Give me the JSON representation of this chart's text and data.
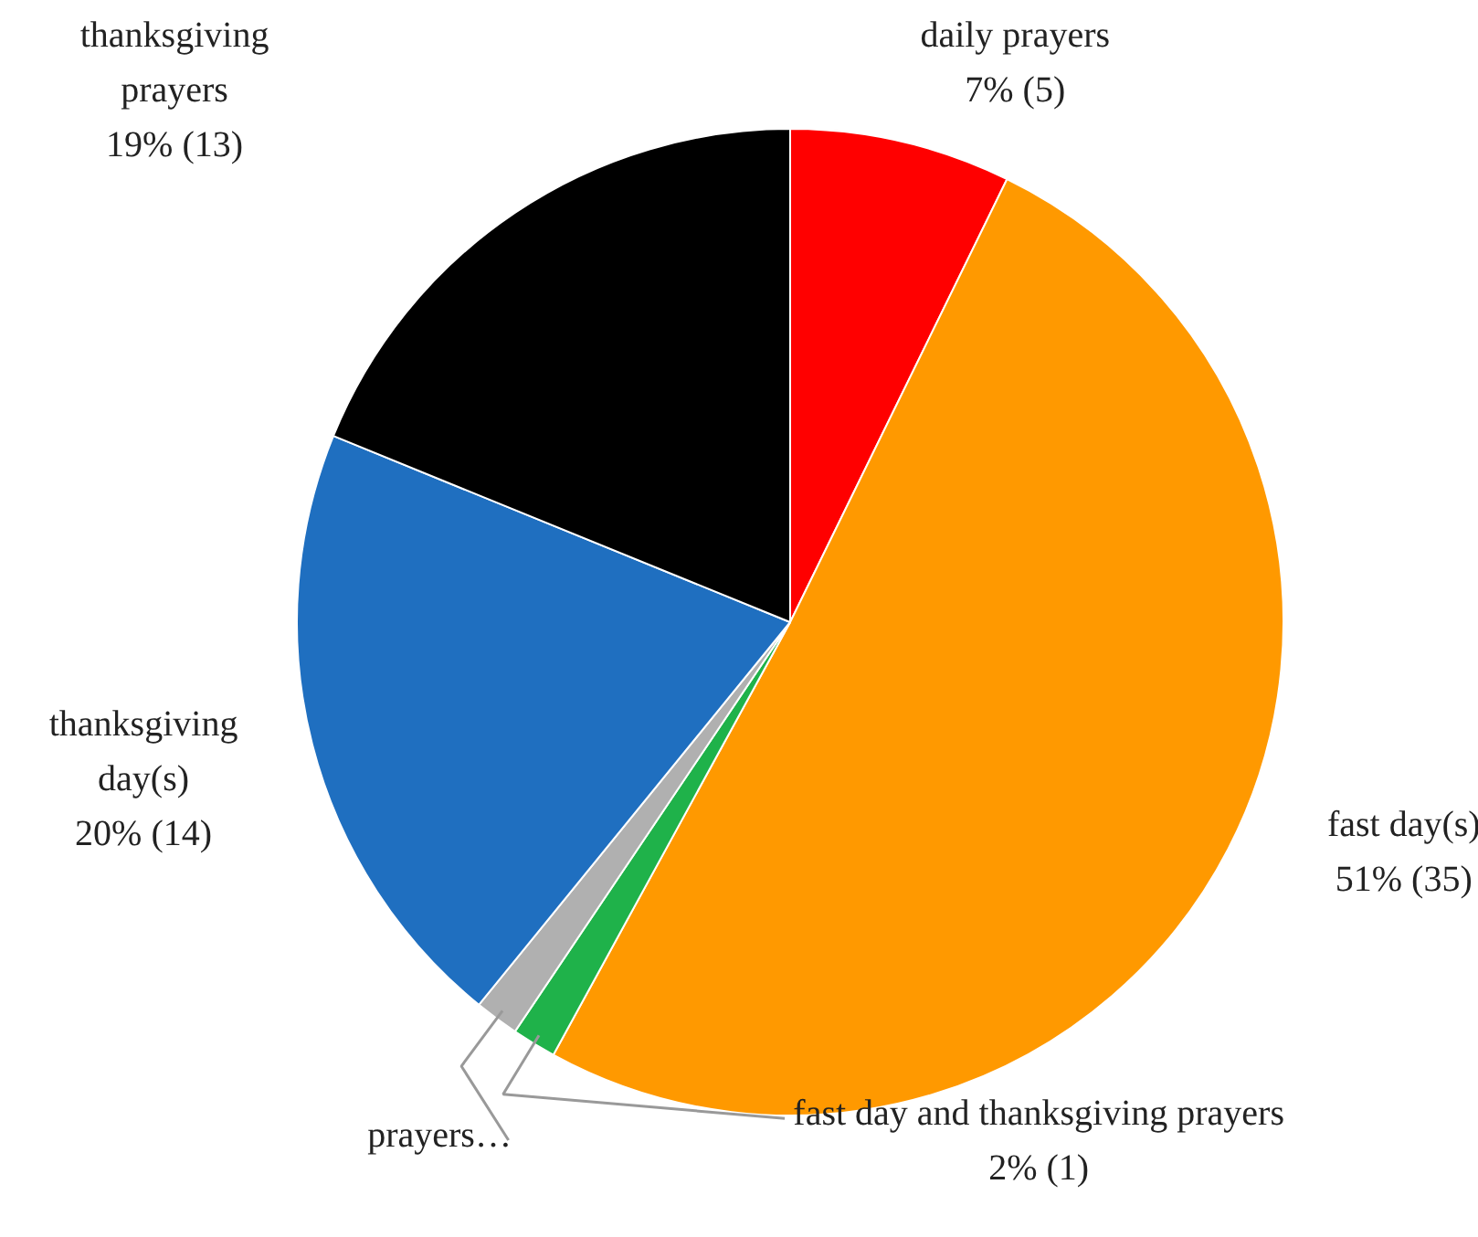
{
  "chart_data": {
    "type": "pie",
    "categories": [
      "daily prayers",
      "fast day(s)",
      "fast day and thanksgiving prayers",
      "prayers…",
      "thanksgiving day(s)",
      "thanksgiving prayers"
    ],
    "values": [
      5,
      35,
      1,
      1,
      14,
      13
    ],
    "colors": [
      "#ff0000",
      "#ff9900",
      "#1fb24a",
      "#b0b0b0",
      "#1f6fc0",
      "#000000"
    ],
    "value_labels": [
      "7% (5)",
      "51% (35)",
      "2% (1)",
      null,
      "20% (14)",
      "19% (13)"
    ]
  }
}
